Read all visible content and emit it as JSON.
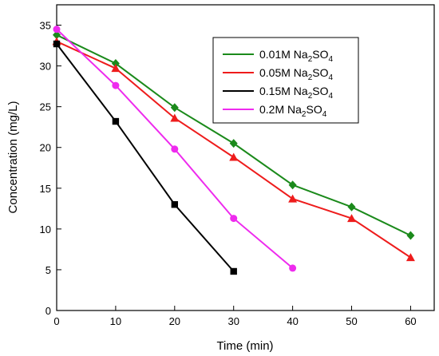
{
  "chart_data": {
    "type": "line",
    "xlabel": "Time (min)",
    "ylabel": "Concentration (mg/L)",
    "xlim": [
      0,
      64
    ],
    "ylim": [
      0,
      37.5
    ],
    "xticks": [
      "0",
      "10",
      "20",
      "30",
      "40",
      "50",
      "60"
    ],
    "yticks": [
      "0",
      "5",
      "10",
      "15",
      "20",
      "25",
      "30",
      "35"
    ],
    "grid": false,
    "legend": {
      "placement": "top-right"
    },
    "series": [
      {
        "name": "0.01M Na2SO4",
        "formula_prefix": "0.01M Na",
        "sub1": "2",
        "formula_mid": "SO",
        "sub2": "4",
        "color": "#1b8a1b",
        "marker": "diamond",
        "x": [
          0,
          10,
          20,
          30,
          40,
          50,
          60
        ],
        "values": [
          33.8,
          30.3,
          24.9,
          20.5,
          15.4,
          12.7,
          9.2
        ]
      },
      {
        "name": "0.05M Na2SO4",
        "formula_prefix": "0.05M Na",
        "sub1": "2",
        "formula_mid": "SO",
        "sub2": "4",
        "color": "#ee1c1c",
        "marker": "triangle",
        "x": [
          0,
          10,
          20,
          30,
          40,
          50,
          60
        ],
        "values": [
          33.0,
          29.7,
          23.6,
          18.8,
          13.7,
          11.3,
          6.5
        ]
      },
      {
        "name": "0.15M Na2SO4",
        "formula_prefix": "0.15M Na",
        "sub1": "2",
        "formula_mid": "SO",
        "sub2": "4",
        "color": "#000000",
        "marker": "square",
        "x": [
          0,
          10,
          20,
          30
        ],
        "values": [
          32.7,
          23.2,
          13.0,
          4.8
        ]
      },
      {
        "name": "0.2M Na2SO4",
        "formula_prefix": "0.2M Na",
        "sub1": "2",
        "formula_mid": "SO",
        "sub2": "4",
        "color": "#ee2bee",
        "marker": "circle",
        "x": [
          0,
          10,
          20,
          30,
          40
        ],
        "values": [
          34.5,
          27.6,
          19.8,
          11.3,
          5.2
        ]
      }
    ]
  }
}
